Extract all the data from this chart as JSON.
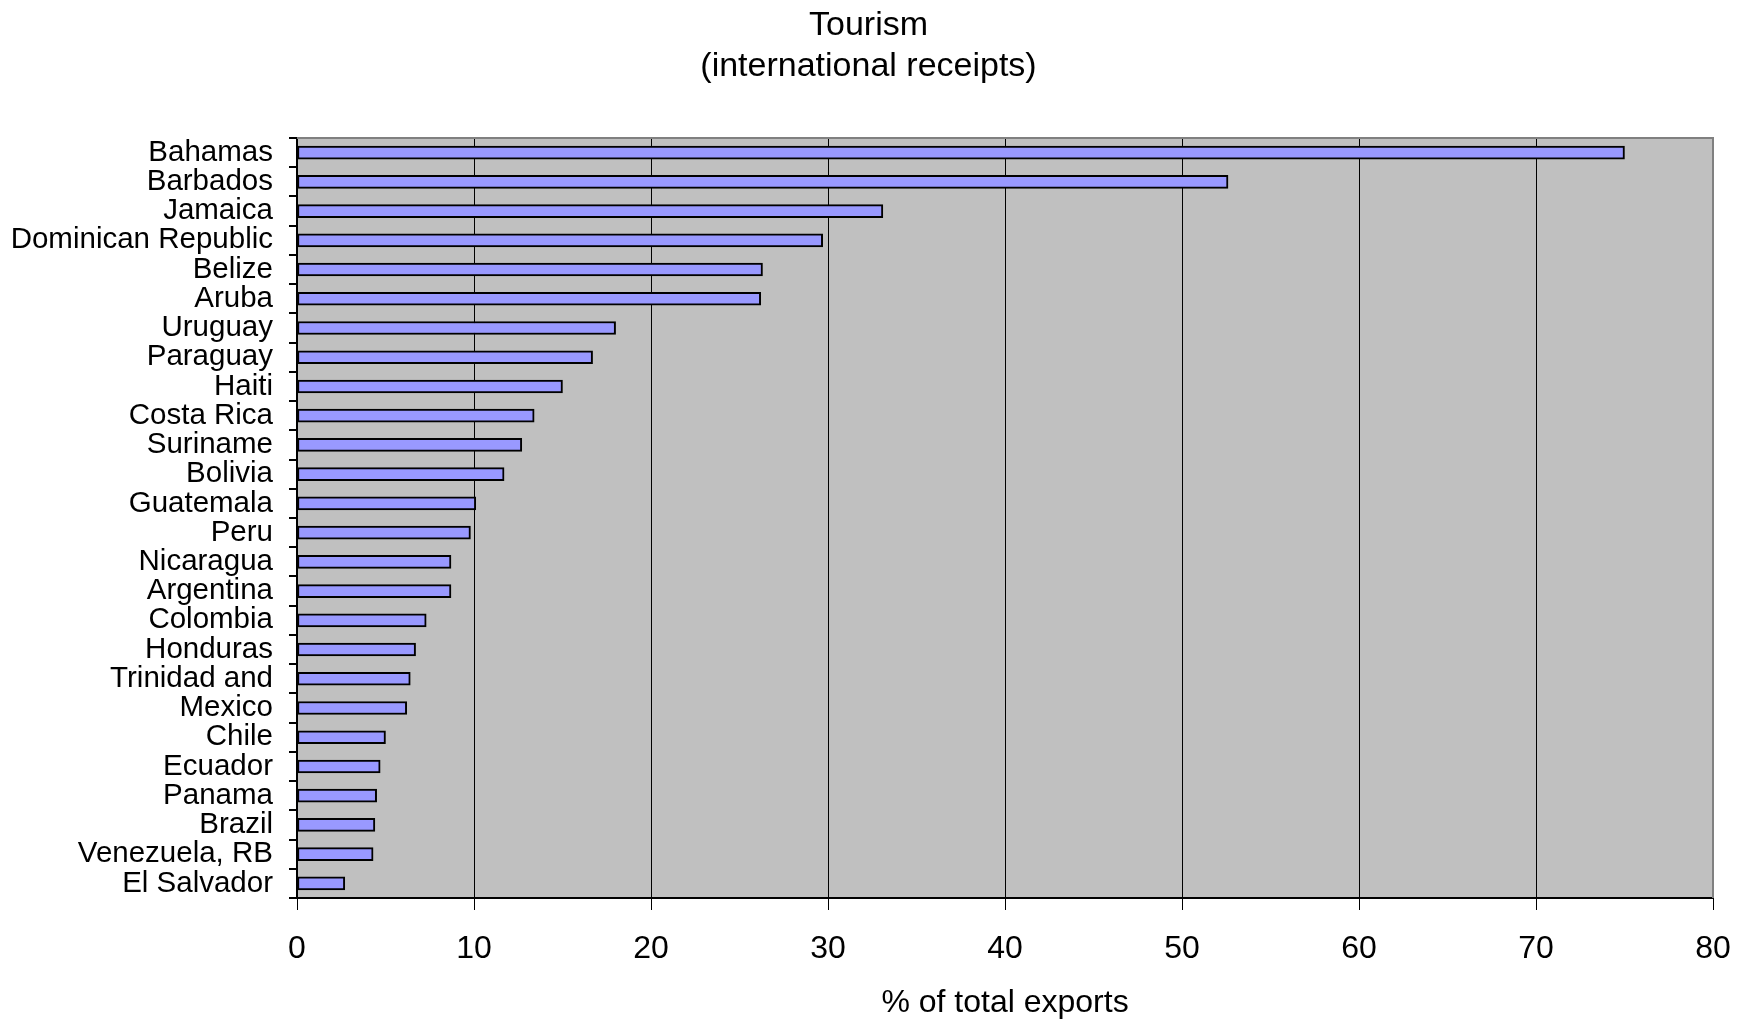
{
  "chart_data": {
    "type": "bar",
    "orientation": "horizontal",
    "title": "Tourism",
    "subtitle": "(international receipts)",
    "xlabel": "% of total exports",
    "categories": [
      "Bahamas",
      "Barbados",
      "Jamaica",
      "Dominican Republic",
      "Belize",
      "Aruba",
      "Uruguay",
      "Paraguay",
      "Haiti",
      "Costa Rica",
      "Suriname",
      "Bolivia",
      "Guatemala",
      "Peru",
      "Nicaragua",
      "Argentina",
      "Colombia",
      "Honduras",
      "Trinidad and",
      "Mexico",
      "Chile",
      "Ecuador",
      "Panama",
      "Brazil",
      "Venezuela, RB",
      "El Salvador"
    ],
    "values": [
      75,
      52.6,
      33.1,
      29.7,
      26.3,
      26.2,
      18.0,
      16.7,
      15.0,
      13.4,
      12.7,
      11.7,
      10.1,
      9.8,
      8.7,
      8.7,
      7.3,
      6.7,
      6.4,
      6.2,
      5.0,
      4.7,
      4.5,
      4.4,
      4.3,
      2.7
    ],
    "color": "#9999ff",
    "xlim": [
      0,
      80
    ],
    "xticks": [
      0,
      10,
      20,
      30,
      40,
      50,
      60,
      70,
      80
    ],
    "grid": "x"
  }
}
